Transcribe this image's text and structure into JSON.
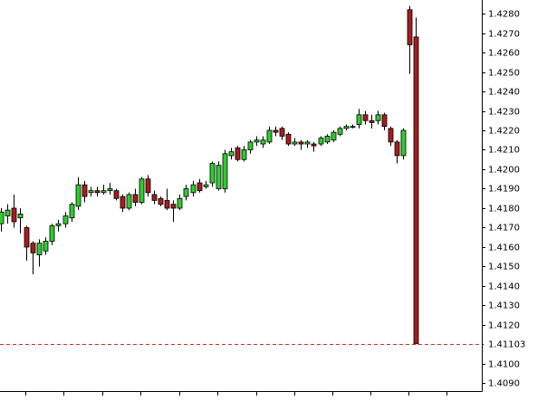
{
  "chart_data": {
    "type": "candlestick",
    "categories": [
      null,
      null,
      null,
      null,
      null,
      null,
      null,
      null,
      null,
      null,
      null,
      null,
      null,
      null,
      null,
      null,
      null,
      null,
      null,
      null,
      null,
      null,
      null,
      null,
      null,
      null,
      null,
      null,
      null,
      null,
      null,
      null,
      null,
      null,
      null,
      null,
      null,
      null,
      null,
      null,
      null,
      null,
      null,
      null,
      null,
      null,
      null,
      null,
      null,
      null,
      null,
      null,
      null,
      null,
      null,
      null,
      null,
      null,
      null,
      null,
      null,
      null,
      null,
      null,
      null,
      null
    ],
    "open": [
      1.4172,
      1.4176,
      1.418,
      1.4175,
      1.417,
      1.4162,
      1.4156,
      1.4158,
      1.4163,
      1.4171,
      1.4172,
      1.4175,
      1.4181,
      1.4192,
      1.4188,
      1.4189,
      1.4188,
      1.4189,
      1.4189,
      1.4186,
      1.418,
      1.4187,
      1.4183,
      1.4195,
      1.4187,
      1.4185,
      1.4184,
      1.4182,
      1.418,
      1.4186,
      1.4188,
      1.4193,
      1.4191,
      1.4193,
      1.419,
      1.419,
      1.4207,
      1.4211,
      1.4205,
      1.421,
      1.4214,
      1.4213,
      1.4214,
      1.422,
      1.4221,
      1.4218,
      1.4213,
      1.4214,
      1.4213,
      1.4213,
      1.4213,
      1.4214,
      1.4215,
      1.4218,
      1.4221,
      1.4222,
      1.4223,
      1.4228,
      1.4225,
      1.4225,
      1.4228,
      1.4221,
      1.4214,
      1.4207,
      1.4282,
      1.4268
    ],
    "high": [
      1.418,
      1.4182,
      1.4187,
      1.418,
      1.4171,
      1.4163,
      1.4164,
      1.4165,
      1.4172,
      1.4174,
      1.4178,
      1.4183,
      1.4196,
      1.4194,
      1.4191,
      1.4191,
      1.4192,
      1.4193,
      1.419,
      1.4187,
      1.4188,
      1.419,
      1.4196,
      1.4197,
      1.4189,
      1.4186,
      1.419,
      1.4184,
      1.4187,
      1.4192,
      1.4194,
      1.4195,
      1.4194,
      1.4204,
      1.4204,
      1.421,
      1.4211,
      1.4212,
      1.4212,
      1.4215,
      1.4217,
      1.4217,
      1.4222,
      1.4222,
      1.4222,
      1.4219,
      1.4216,
      1.4215,
      1.4215,
      1.4214,
      1.4217,
      1.4218,
      1.422,
      1.4222,
      1.4223,
      1.4223,
      1.4231,
      1.423,
      1.4228,
      1.423,
      1.4229,
      1.4222,
      1.4215,
      1.4221,
      1.4284,
      1.4278
    ],
    "low": [
      1.4168,
      1.4172,
      1.417,
      1.4167,
      1.4153,
      1.4146,
      1.415,
      1.4156,
      1.4161,
      1.4168,
      1.417,
      1.4173,
      1.4179,
      1.4183,
      1.4186,
      1.4186,
      1.4187,
      1.4187,
      1.4184,
      1.4178,
      1.4179,
      1.4181,
      1.4182,
      1.4186,
      1.4182,
      1.4181,
      1.4179,
      1.4173,
      1.4179,
      1.4184,
      1.4186,
      1.4188,
      1.419,
      1.4191,
      1.4189,
      1.4188,
      1.4205,
      1.4204,
      1.4204,
      1.4208,
      1.4212,
      1.4211,
      1.4213,
      1.4217,
      1.4215,
      1.4212,
      1.4212,
      1.421,
      1.4211,
      1.4209,
      1.4212,
      1.4213,
      1.4214,
      1.4217,
      1.422,
      1.4221,
      1.4221,
      1.4223,
      1.4221,
      1.4223,
      1.422,
      1.4212,
      1.4203,
      1.4205,
      1.4249,
      1.41103
    ],
    "close": [
      1.4178,
      1.4179,
      1.4173,
      1.4177,
      1.416,
      1.4157,
      1.4162,
      1.4163,
      1.4171,
      1.4172,
      1.4176,
      1.4182,
      1.4192,
      1.4186,
      1.4189,
      1.4188,
      1.4189,
      1.419,
      1.4185,
      1.418,
      1.4187,
      1.4183,
      1.4195,
      1.4188,
      1.4184,
      1.4182,
      1.418,
      1.418,
      1.4185,
      1.419,
      1.4192,
      1.4189,
      1.4192,
      1.4203,
      1.4202,
      1.4208,
      1.4209,
      1.4205,
      1.421,
      1.4214,
      1.4215,
      1.4215,
      1.422,
      1.4219,
      1.4217,
      1.4213,
      1.4214,
      1.4213,
      1.4214,
      1.4212,
      1.4216,
      1.4217,
      1.4219,
      1.4221,
      1.4222,
      1.4222,
      1.4228,
      1.4225,
      1.4224,
      1.4228,
      1.4222,
      1.4214,
      1.4207,
      1.422,
      1.4264,
      1.41103
    ],
    "up_color": "#2ecc2e",
    "down_color": "#a51d1d",
    "ylim": [
      1.4086,
      1.4287
    ],
    "yticks": [
      {
        "value": 1.409,
        "label": "1.4090"
      },
      {
        "value": 1.41,
        "label": "1.4100"
      },
      {
        "value": 1.411,
        "label": "1.4110"
      },
      {
        "value": 1.412,
        "label": "1.4120"
      },
      {
        "value": 1.413,
        "label": "1.4130"
      },
      {
        "value": 1.414,
        "label": "1.4140"
      },
      {
        "value": 1.415,
        "label": "1.4150"
      },
      {
        "value": 1.416,
        "label": "1.4160"
      },
      {
        "value": 1.417,
        "label": "1.4170"
      },
      {
        "value": 1.418,
        "label": "1.4180"
      },
      {
        "value": 1.419,
        "label": "1.4190"
      },
      {
        "value": 1.42,
        "label": "1.4200"
      },
      {
        "value": 1.421,
        "label": "1.4210"
      },
      {
        "value": 1.422,
        "label": "1.4220"
      },
      {
        "value": 1.423,
        "label": "1.4230"
      },
      {
        "value": 1.424,
        "label": "1.4240"
      },
      {
        "value": 1.425,
        "label": "1.4250"
      },
      {
        "value": 1.426,
        "label": "1.4260"
      },
      {
        "value": 1.427,
        "label": "1.4270"
      },
      {
        "value": 1.428,
        "label": "1.4280"
      }
    ],
    "price_line": {
      "value": 1.41103,
      "label": "1.41103",
      "color": "#d42a2a"
    }
  }
}
